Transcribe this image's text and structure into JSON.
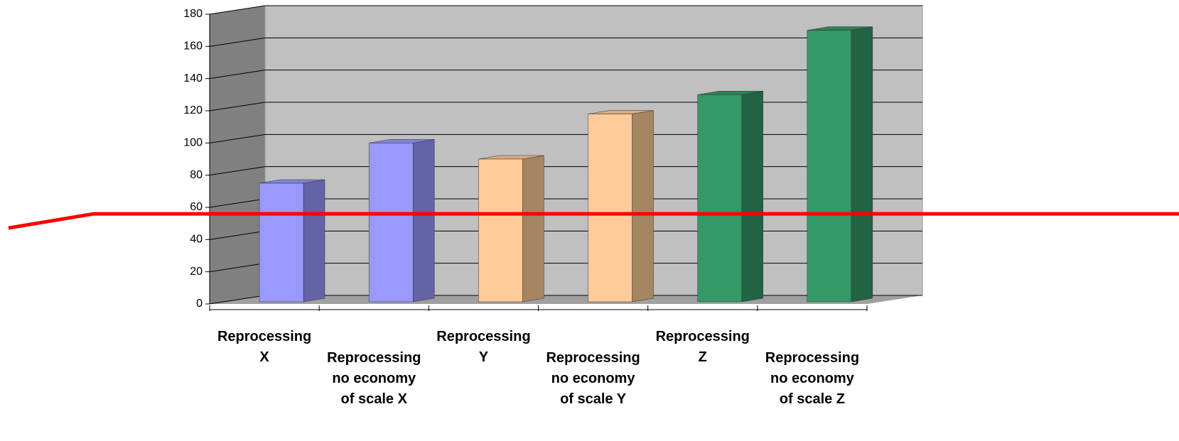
{
  "chart_data": {
    "type": "bar3d",
    "categories": [
      "Reprocessing\nX",
      "Reprocessing\nno economy\nof scale X",
      "Reprocessing\nY",
      "Reprocessing\nno economy\nof scale Y",
      "Reprocessing\nZ",
      "Reprocessing\nno economy\nof scale Z"
    ],
    "values": [
      75,
      100,
      90,
      118,
      130,
      170
    ],
    "colors": [
      "#9999ff",
      "#9999ff",
      "#ffcc99",
      "#ffcc99",
      "#339966",
      "#339966"
    ],
    "ylim": [
      0,
      180
    ],
    "yticks": [
      0,
      20,
      40,
      60,
      80,
      100,
      120,
      140,
      160,
      180
    ],
    "grid": true,
    "reference_line": {
      "value": 56,
      "color": "#ff0000"
    }
  }
}
